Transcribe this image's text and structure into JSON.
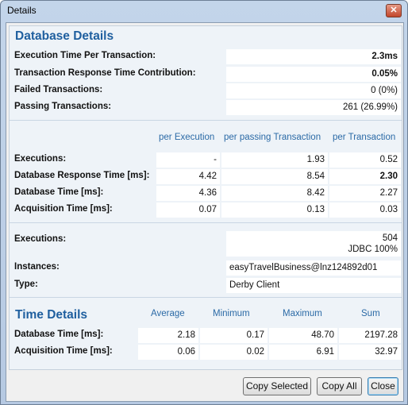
{
  "window": {
    "title": "Details",
    "close_glyph": "✕"
  },
  "database_details": {
    "heading": "Database Details",
    "summary": [
      {
        "label": "Execution Time Per Transaction:",
        "value": "2.3ms",
        "bold": true
      },
      {
        "label": "Transaction Response Time Contribution:",
        "value": "0.05%",
        "bold": true
      },
      {
        "label": "Failed Transactions:",
        "value": "0 (0%)",
        "bold": false
      },
      {
        "label": "Passing Transactions:",
        "value": "261 (26.99%)",
        "bold": false
      }
    ],
    "columns": [
      "per Execution",
      "per passing Transaction",
      "per Transaction"
    ],
    "rows": [
      {
        "label": "Executions:",
        "values": [
          "-",
          "1.93",
          "0.52"
        ]
      },
      {
        "label": "Database Response Time [ms]:",
        "values": [
          "4.42",
          "8.54",
          "2.30"
        ]
      },
      {
        "label": "Database Time [ms]:",
        "values": [
          "4.36",
          "8.42",
          "2.27"
        ]
      },
      {
        "label": "Acquisition Time [ms]:",
        "values": [
          "0.07",
          "0.13",
          "0.03"
        ]
      }
    ],
    "executions": {
      "label": "Executions:",
      "count": "504",
      "breakdown": "JDBC 100%"
    },
    "instances": {
      "label": "Instances:",
      "value": "easyTravelBusiness@lnz124892d01"
    },
    "type": {
      "label": "Type:",
      "value": "Derby Client"
    }
  },
  "time_details": {
    "heading": "Time Details",
    "columns": [
      "Average",
      "Minimum",
      "Maximum",
      "Sum"
    ],
    "rows": [
      {
        "label": "Database Time [ms]:",
        "values": [
          "2.18",
          "0.17",
          "48.70",
          "2197.28"
        ]
      },
      {
        "label": "Acquisition Time [ms]:",
        "values": [
          "0.06",
          "0.02",
          "6.91",
          "32.97"
        ]
      }
    ]
  },
  "buttons": {
    "copy_selected": "Copy Selected",
    "copy_all": "Copy All",
    "close": "Close"
  }
}
